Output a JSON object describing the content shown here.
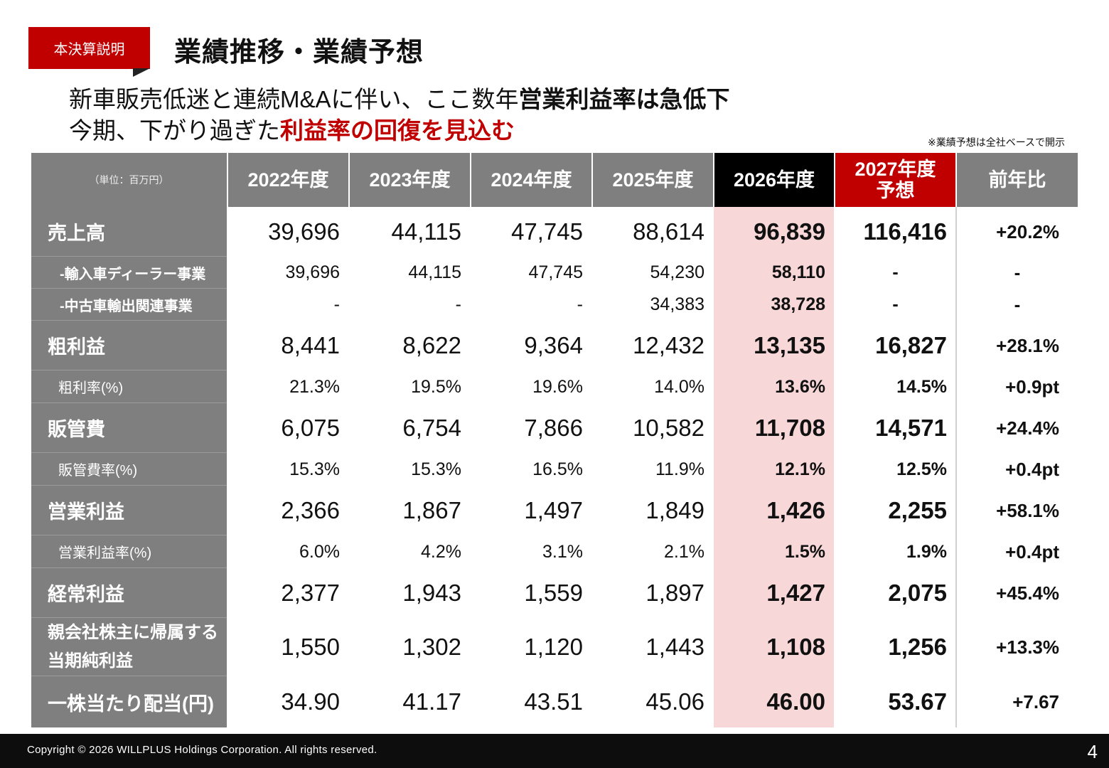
{
  "tag": "本決算説明",
  "title": "業績推移・業績予想",
  "headline": {
    "line1_normal": "新車販売低迷と連続M&Aに伴い、ここ数年",
    "line1_bold": "営業利益率は急低下",
    "line2_normal": "今期、下がり過ぎた",
    "line2_red": "利益率の回復を見込む"
  },
  "note": "※業績予想は全社ベースで開示",
  "table": {
    "unit_label": "（単位：百万円）",
    "columns": [
      "2022年度",
      "2023年度",
      "2024年度",
      "2025年度",
      "2026年度",
      "2027年度予想",
      "前年比"
    ],
    "col_2027_line1": "2027年度",
    "col_2027_line2": "予想",
    "rows": [
      {
        "label": "売上高",
        "values": [
          "39,696",
          "44,115",
          "47,745",
          "88,614",
          "96,839",
          "116,416",
          "+20.2%"
        ]
      },
      {
        "label": "-輸入車ディーラー事業",
        "values": [
          "39,696",
          "44,115",
          "47,745",
          "54,230",
          "58,110",
          "-",
          "-"
        ]
      },
      {
        "label": "-中古車輸出関連事業",
        "values": [
          "-",
          "-",
          "-",
          "34,383",
          "38,728",
          "-",
          "-"
        ]
      },
      {
        "label": "粗利益",
        "values": [
          "8,441",
          "8,622",
          "9,364",
          "12,432",
          "13,135",
          "16,827",
          "+28.1%"
        ]
      },
      {
        "label": "粗利率(%)",
        "values": [
          "21.3%",
          "19.5%",
          "19.6%",
          "14.0%",
          "13.6%",
          "14.5%",
          "+0.9pt"
        ]
      },
      {
        "label": "販管費",
        "values": [
          "6,075",
          "6,754",
          "7,866",
          "10,582",
          "11,708",
          "14,571",
          "+24.4%"
        ]
      },
      {
        "label": "販管費率(%)",
        "values": [
          "15.3%",
          "15.3%",
          "16.5%",
          "11.9%",
          "12.1%",
          "12.5%",
          "+0.4pt"
        ]
      },
      {
        "label": "営業利益",
        "values": [
          "2,366",
          "1,867",
          "1,497",
          "1,849",
          "1,426",
          "2,255",
          "+58.1%"
        ]
      },
      {
        "label": "営業利益率(%)",
        "values": [
          "6.0%",
          "4.2%",
          "3.1%",
          "2.1%",
          "1.5%",
          "1.9%",
          "+0.4pt"
        ]
      },
      {
        "label": "経常利益",
        "values": [
          "2,377",
          "1,943",
          "1,559",
          "1,897",
          "1,427",
          "2,075",
          "+45.4%"
        ]
      },
      {
        "label_line1": "親会社株主に帰属する",
        "label_line2": "当期純利益",
        "values": [
          "1,550",
          "1,302",
          "1,120",
          "1,443",
          "1,108",
          "1,256",
          "+13.3%"
        ]
      },
      {
        "label": "一株当たり配当(円)",
        "values": [
          "34.90",
          "41.17",
          "43.51",
          "45.06",
          "46.00",
          "53.67",
          "+7.67"
        ]
      }
    ]
  },
  "footer": {
    "copyright": "Copyright © 2026 WILLPLUS Holdings Corporation. All rights reserved.",
    "page": "4"
  }
}
